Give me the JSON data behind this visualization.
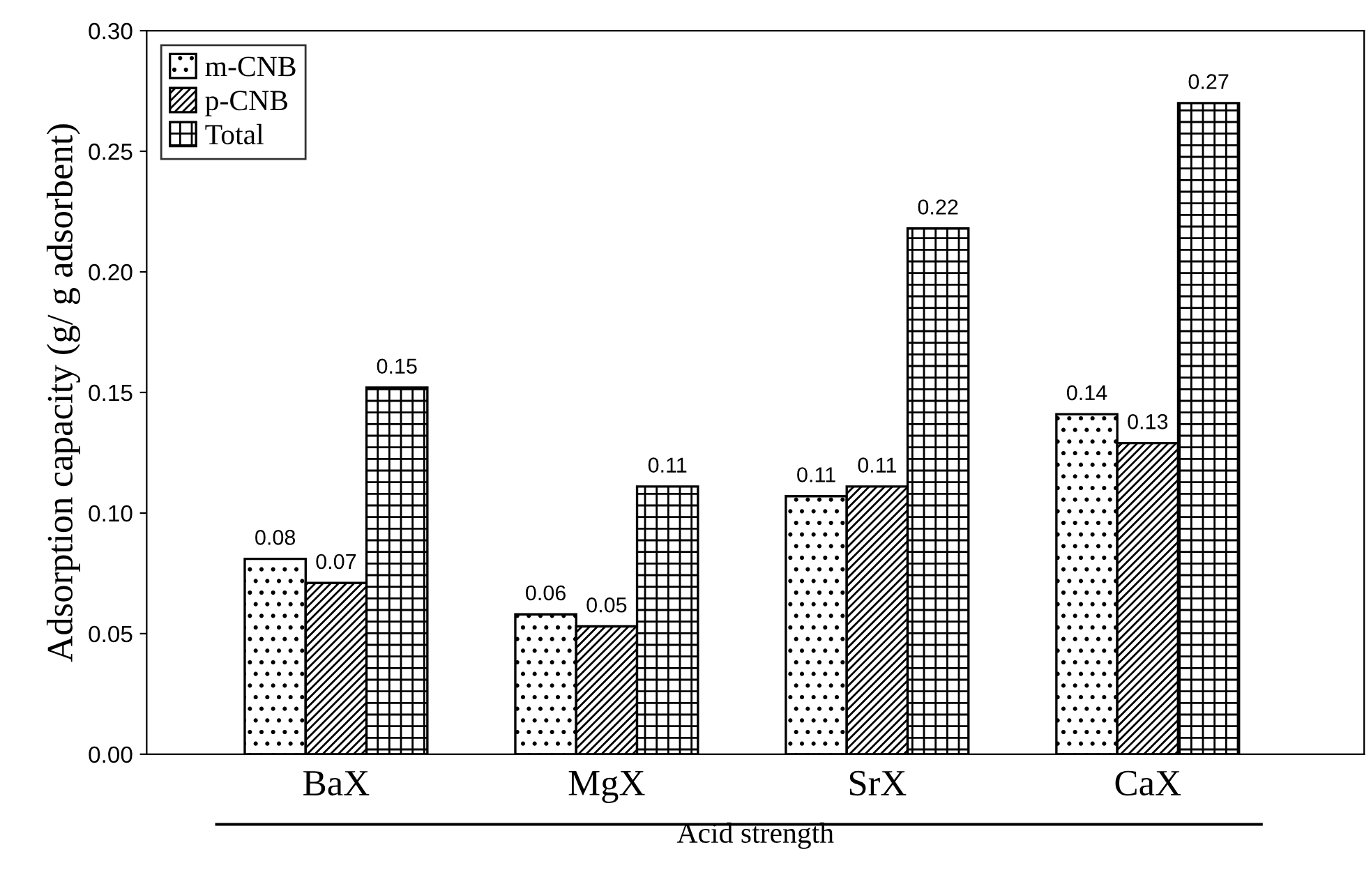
{
  "chart_data": {
    "type": "bar",
    "categories": [
      "BaX",
      "MgX",
      "SrX",
      "CaX"
    ],
    "xlabel": "Acid strength",
    "ylabel": "Adsorption capacity (g/ g adsorbent)",
    "series": [
      {
        "name": "m-CNB",
        "color": "#000000",
        "values": [
          0.081,
          0.058,
          0.107,
          0.141
        ],
        "value_labels": [
          "0.08",
          "0.06",
          "0.11",
          "0.14"
        ]
      },
      {
        "name": "p-CNB",
        "color": "#000000",
        "values": [
          0.071,
          0.053,
          0.111,
          0.129
        ],
        "value_labels": [
          "0.07",
          "0.05",
          "0.11",
          "0.13"
        ]
      },
      {
        "name": "Total",
        "color": "#000000",
        "values": [
          0.152,
          0.111,
          0.218,
          0.27
        ],
        "value_labels": [
          "0.15",
          "0.11",
          "0.22",
          "0.27"
        ]
      }
    ],
    "ylim": [
      0,
      0.3
    ],
    "yticks": [
      {
        "value": 0,
        "label": "0.00"
      },
      {
        "value": 0.05,
        "label": "0.05"
      },
      {
        "value": 0.1,
        "label": "0.10"
      },
      {
        "value": 0.15,
        "label": "0.15"
      },
      {
        "value": 0.2,
        "label": "0.20"
      },
      {
        "value": 0.25,
        "label": "0.25"
      },
      {
        "value": 0.3,
        "label": "0.30"
      }
    ],
    "legend": "top left"
  }
}
